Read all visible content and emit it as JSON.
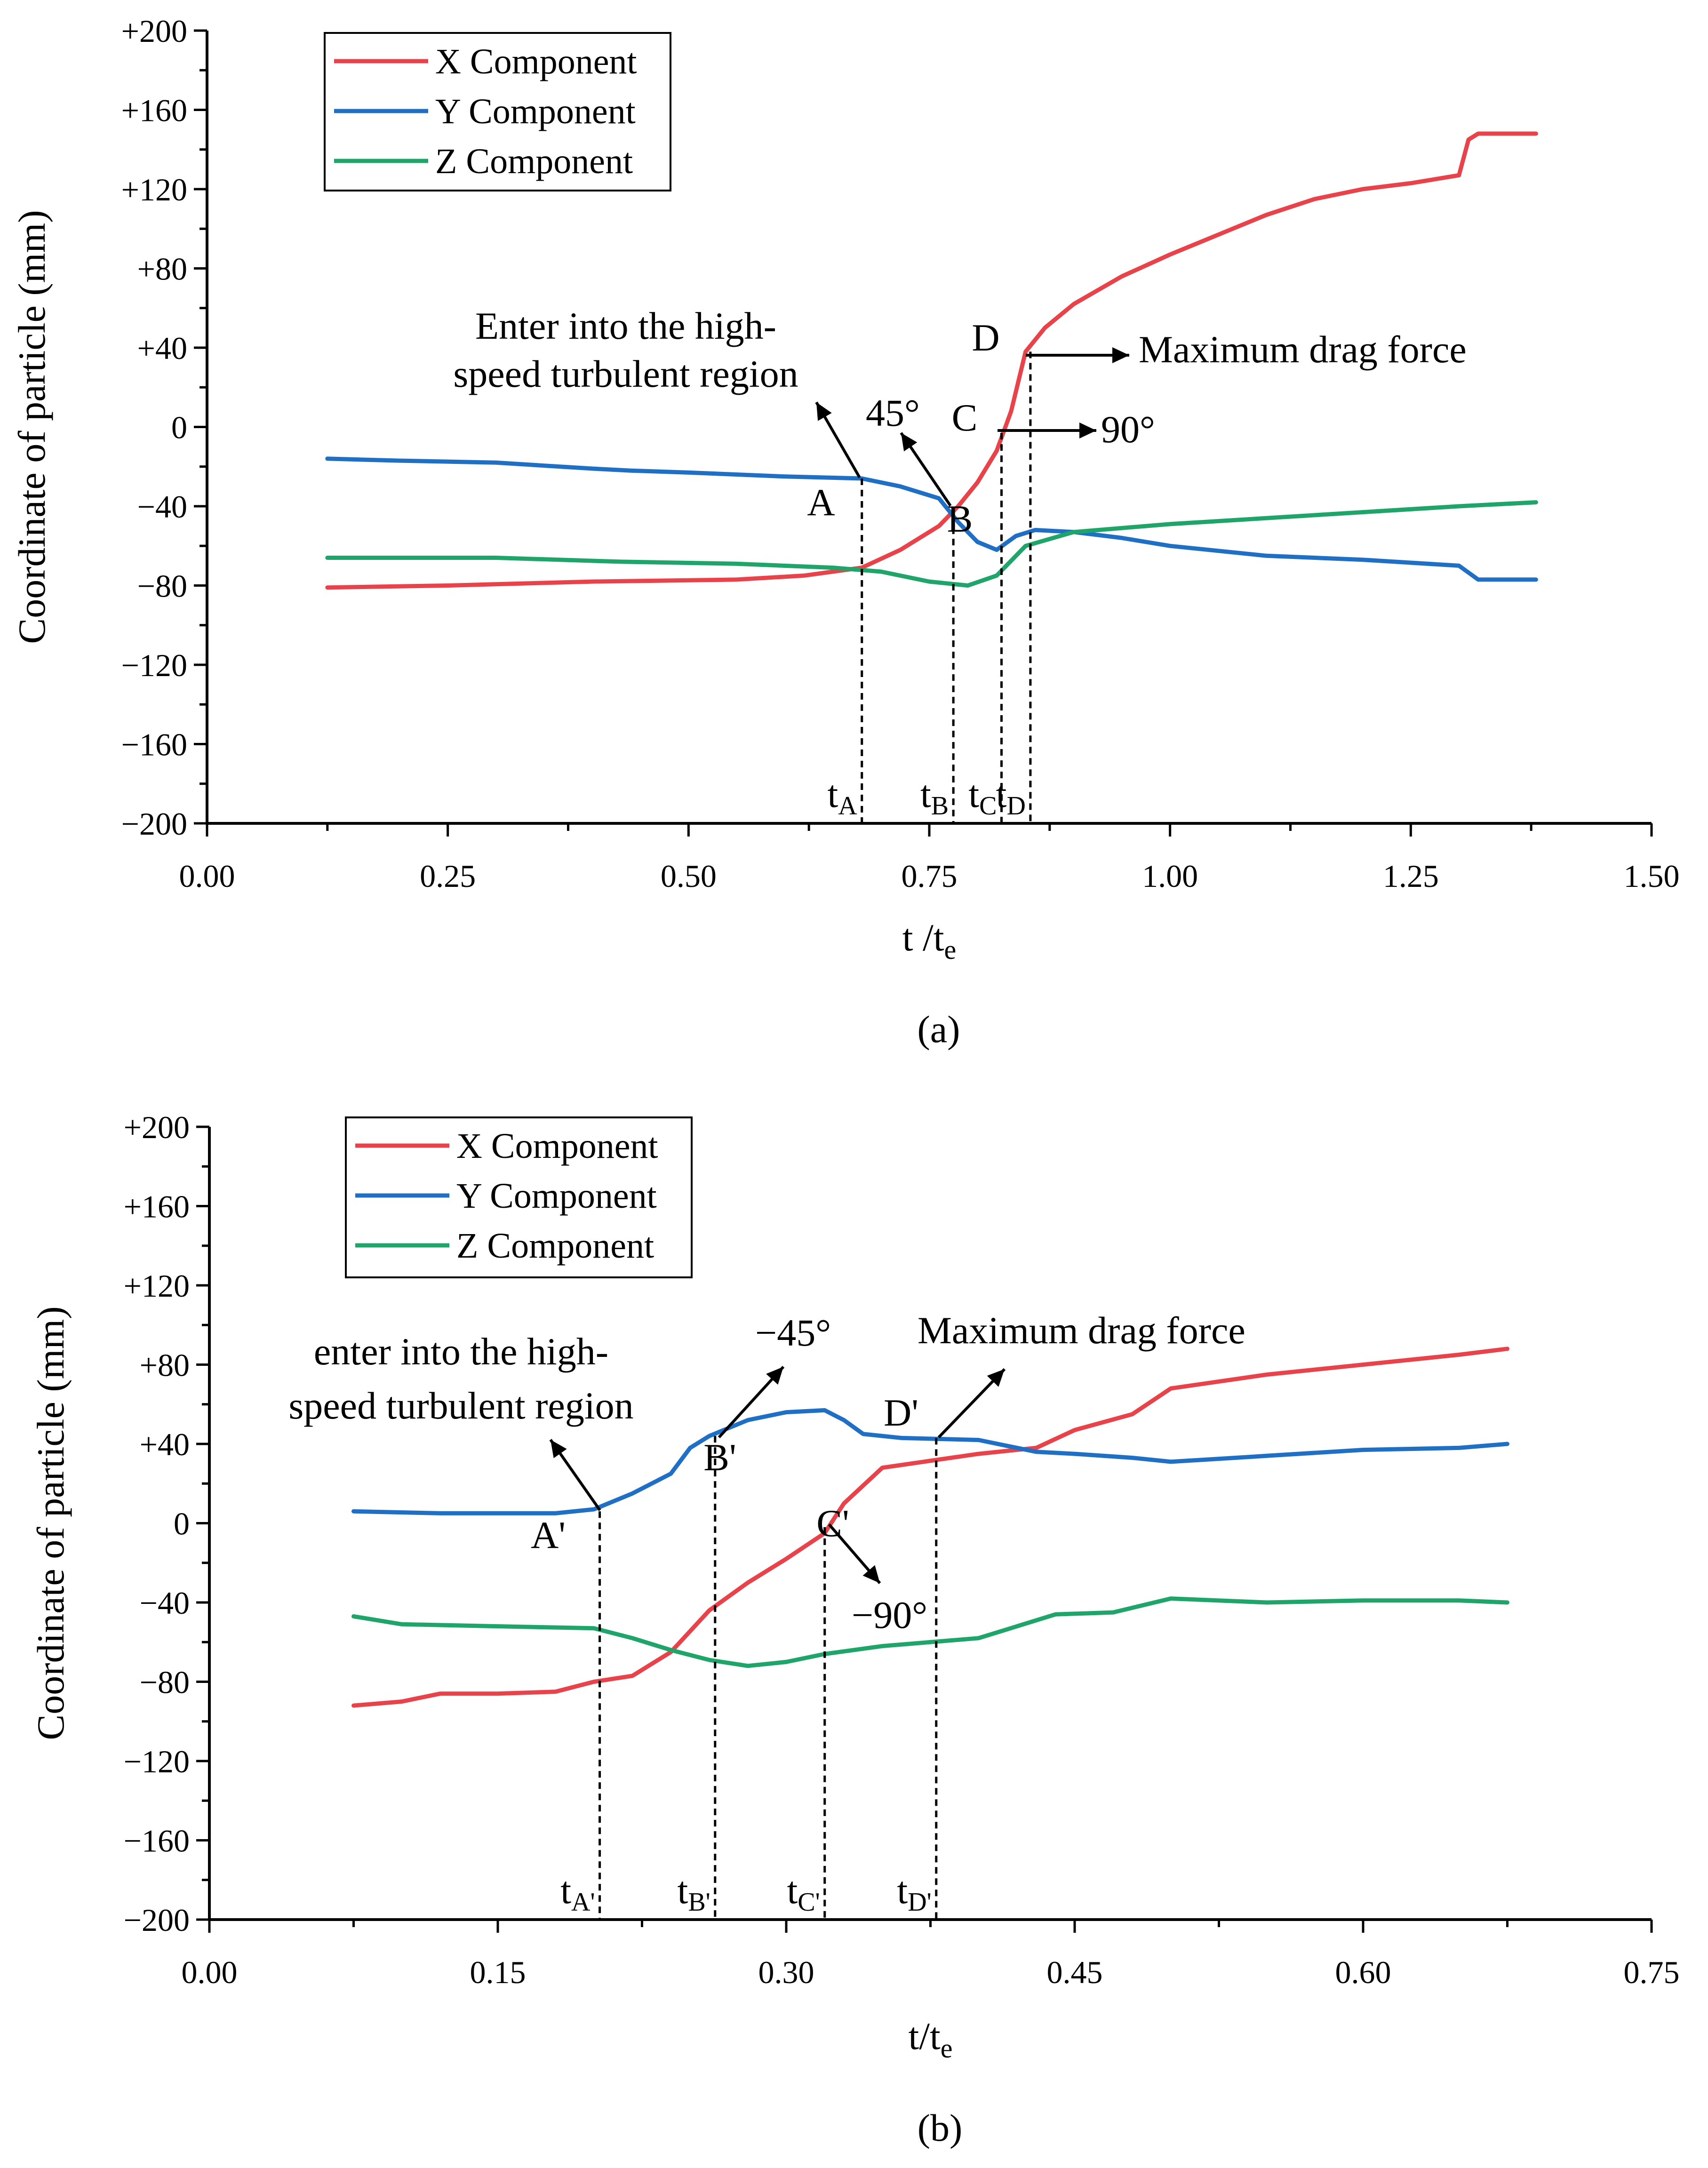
{
  "chart_data": [
    {
      "type": "line",
      "panel_label": "(a)",
      "xlabel": "t /t",
      "xlabel_sub": "e",
      "ylabel": "Coordinate of particle (mm)",
      "xlim": [
        0,
        1.5
      ],
      "ylim": [
        -200,
        200
      ],
      "x_ticks": [
        0.0,
        0.25,
        0.5,
        0.75,
        1.0,
        1.25,
        1.5
      ],
      "x_tick_labels": [
        "0.00",
        "0.25",
        "0.50",
        "0.75",
        "1.00",
        "1.25",
        "1.50"
      ],
      "y_ticks": [
        200,
        160,
        120,
        80,
        40,
        0,
        -40,
        -80,
        -120,
        -160,
        -200
      ],
      "y_tick_labels": [
        "+200",
        "+160",
        "+120",
        "+80",
        "+40",
        "0",
        "−40",
        "−80",
        "−120",
        "−160",
        "−200"
      ],
      "legend": {
        "position": "top-left",
        "entries": [
          "X Component",
          "Y Component",
          "Z Component"
        ]
      },
      "series": [
        {
          "name": "X Component",
          "color": "#e8424a",
          "x": [
            0.125,
            0.25,
            0.4,
            0.55,
            0.62,
            0.68,
            0.72,
            0.76,
            0.78,
            0.8,
            0.82,
            0.835,
            0.85,
            0.87,
            0.9,
            0.95,
            1.0,
            1.05,
            1.1,
            1.15,
            1.2,
            1.25,
            1.3,
            1.31,
            1.32,
            1.38
          ],
          "y": [
            -81,
            -80,
            -78,
            -77,
            -75,
            -71,
            -62,
            -50,
            -40,
            -28,
            -12,
            8,
            38,
            50,
            62,
            76,
            87,
            97,
            107,
            115,
            120,
            123,
            127,
            145,
            148,
            148
          ]
        },
        {
          "name": "Y Component",
          "color": "#1f6fc5",
          "x": [
            0.125,
            0.2,
            0.3,
            0.4,
            0.44,
            0.5,
            0.6,
            0.68,
            0.72,
            0.76,
            0.78,
            0.8,
            0.82,
            0.84,
            0.86,
            0.9,
            0.95,
            1.0,
            1.1,
            1.2,
            1.3,
            1.32,
            1.38
          ],
          "y": [
            -16,
            -17,
            -18,
            -21,
            -22,
            -23,
            -25,
            -26,
            -30,
            -36,
            -48,
            -58,
            -62,
            -55,
            -52,
            -53,
            -56,
            -60,
            -65,
            -67,
            -70,
            -77,
            -77
          ]
        },
        {
          "name": "Z Component",
          "color": "#1fa46a",
          "x": [
            0.125,
            0.3,
            0.43,
            0.55,
            0.65,
            0.7,
            0.75,
            0.77,
            0.79,
            0.82,
            0.85,
            0.9,
            1.0,
            1.1,
            1.2,
            1.3,
            1.38
          ],
          "y": [
            -66,
            -66,
            -68,
            -69,
            -71,
            -73,
            -78,
            -79,
            -80,
            -75,
            -60,
            -53,
            -49,
            -46,
            -43,
            -40,
            -38
          ]
        }
      ],
      "annotations": {
        "entry_line1": "Enter into the high-",
        "entry_line2": "speed turbulent region",
        "angle_b": "45°",
        "angle_c": "90°",
        "max_drag": "Maximum drag force",
        "point_a": "A",
        "point_b": "B",
        "point_c": "C",
        "point_d": "D"
      },
      "markers": [
        {
          "x": 0.68,
          "label": "t",
          "sub": "A"
        },
        {
          "x": 0.775,
          "label": "t",
          "sub": "B"
        },
        {
          "x": 0.825,
          "label": "t",
          "sub": "C"
        },
        {
          "x": 0.855,
          "label": "t",
          "sub": "D"
        }
      ]
    },
    {
      "type": "line",
      "panel_label": "(b)",
      "xlabel": "t/t",
      "xlabel_sub": "e",
      "ylabel": "Coordinate of particle (mm)",
      "xlim": [
        0,
        0.75
      ],
      "ylim": [
        -200,
        200
      ],
      "x_ticks": [
        0.0,
        0.15,
        0.3,
        0.45,
        0.6,
        0.75
      ],
      "x_tick_labels": [
        "0.00",
        "0.15",
        "0.30",
        "0.45",
        "0.60",
        "0.75"
      ],
      "y_ticks": [
        200,
        160,
        120,
        80,
        40,
        0,
        -40,
        -80,
        -120,
        -160,
        -200
      ],
      "y_tick_labels": [
        "+200",
        "+160",
        "+120",
        "+80",
        "+40",
        "0",
        "−40",
        "−80",
        "−120",
        "−160",
        "−200"
      ],
      "legend": {
        "position": "top-left",
        "entries": [
          "X Component",
          "Y Component",
          "Z Component"
        ]
      },
      "series": [
        {
          "name": "X Component",
          "color": "#e8424a",
          "x": [
            0.075,
            0.1,
            0.12,
            0.15,
            0.18,
            0.2,
            0.22,
            0.24,
            0.26,
            0.28,
            0.3,
            0.32,
            0.33,
            0.35,
            0.4,
            0.43,
            0.45,
            0.48,
            0.5,
            0.55,
            0.6,
            0.65,
            0.675
          ],
          "y": [
            -92,
            -90,
            -86,
            -86,
            -85,
            -80,
            -77,
            -65,
            -44,
            -30,
            -18,
            -5,
            10,
            28,
            35,
            38,
            47,
            55,
            68,
            75,
            80,
            85,
            88
          ]
        },
        {
          "name": "Y Component",
          "color": "#1f6fc5",
          "x": [
            0.075,
            0.12,
            0.18,
            0.2,
            0.22,
            0.24,
            0.25,
            0.26,
            0.28,
            0.3,
            0.32,
            0.33,
            0.34,
            0.36,
            0.4,
            0.43,
            0.45,
            0.48,
            0.5,
            0.55,
            0.6,
            0.65,
            0.675
          ],
          "y": [
            6,
            5,
            5,
            7,
            15,
            25,
            38,
            44,
            52,
            56,
            57,
            52,
            45,
            43,
            42,
            36,
            35,
            33,
            31,
            34,
            37,
            38,
            40
          ]
        },
        {
          "name": "Z Component",
          "color": "#1fa46a",
          "x": [
            0.075,
            0.1,
            0.15,
            0.2,
            0.22,
            0.24,
            0.26,
            0.28,
            0.3,
            0.32,
            0.35,
            0.4,
            0.42,
            0.44,
            0.47,
            0.5,
            0.55,
            0.6,
            0.65,
            0.675
          ],
          "y": [
            -47,
            -51,
            -52,
            -53,
            -58,
            -64,
            -69,
            -72,
            -70,
            -66,
            -62,
            -58,
            -52,
            -46,
            -45,
            -38,
            -40,
            -39,
            -39,
            -40
          ]
        }
      ],
      "annotations": {
        "entry_line1": "enter into the high-",
        "entry_line2": "speed turbulent region",
        "angle_b": "−45°",
        "angle_c": "−90°",
        "max_drag": "Maximum drag force",
        "point_a": "A'",
        "point_b": "B'",
        "point_c": "C'",
        "point_d": "D'"
      },
      "markers": [
        {
          "x": 0.203,
          "label": "t",
          "sub": "A'"
        },
        {
          "x": 0.263,
          "label": "t",
          "sub": "B'"
        },
        {
          "x": 0.32,
          "label": "t",
          "sub": "C'"
        },
        {
          "x": 0.378,
          "label": "t",
          "sub": "D'"
        }
      ]
    }
  ]
}
